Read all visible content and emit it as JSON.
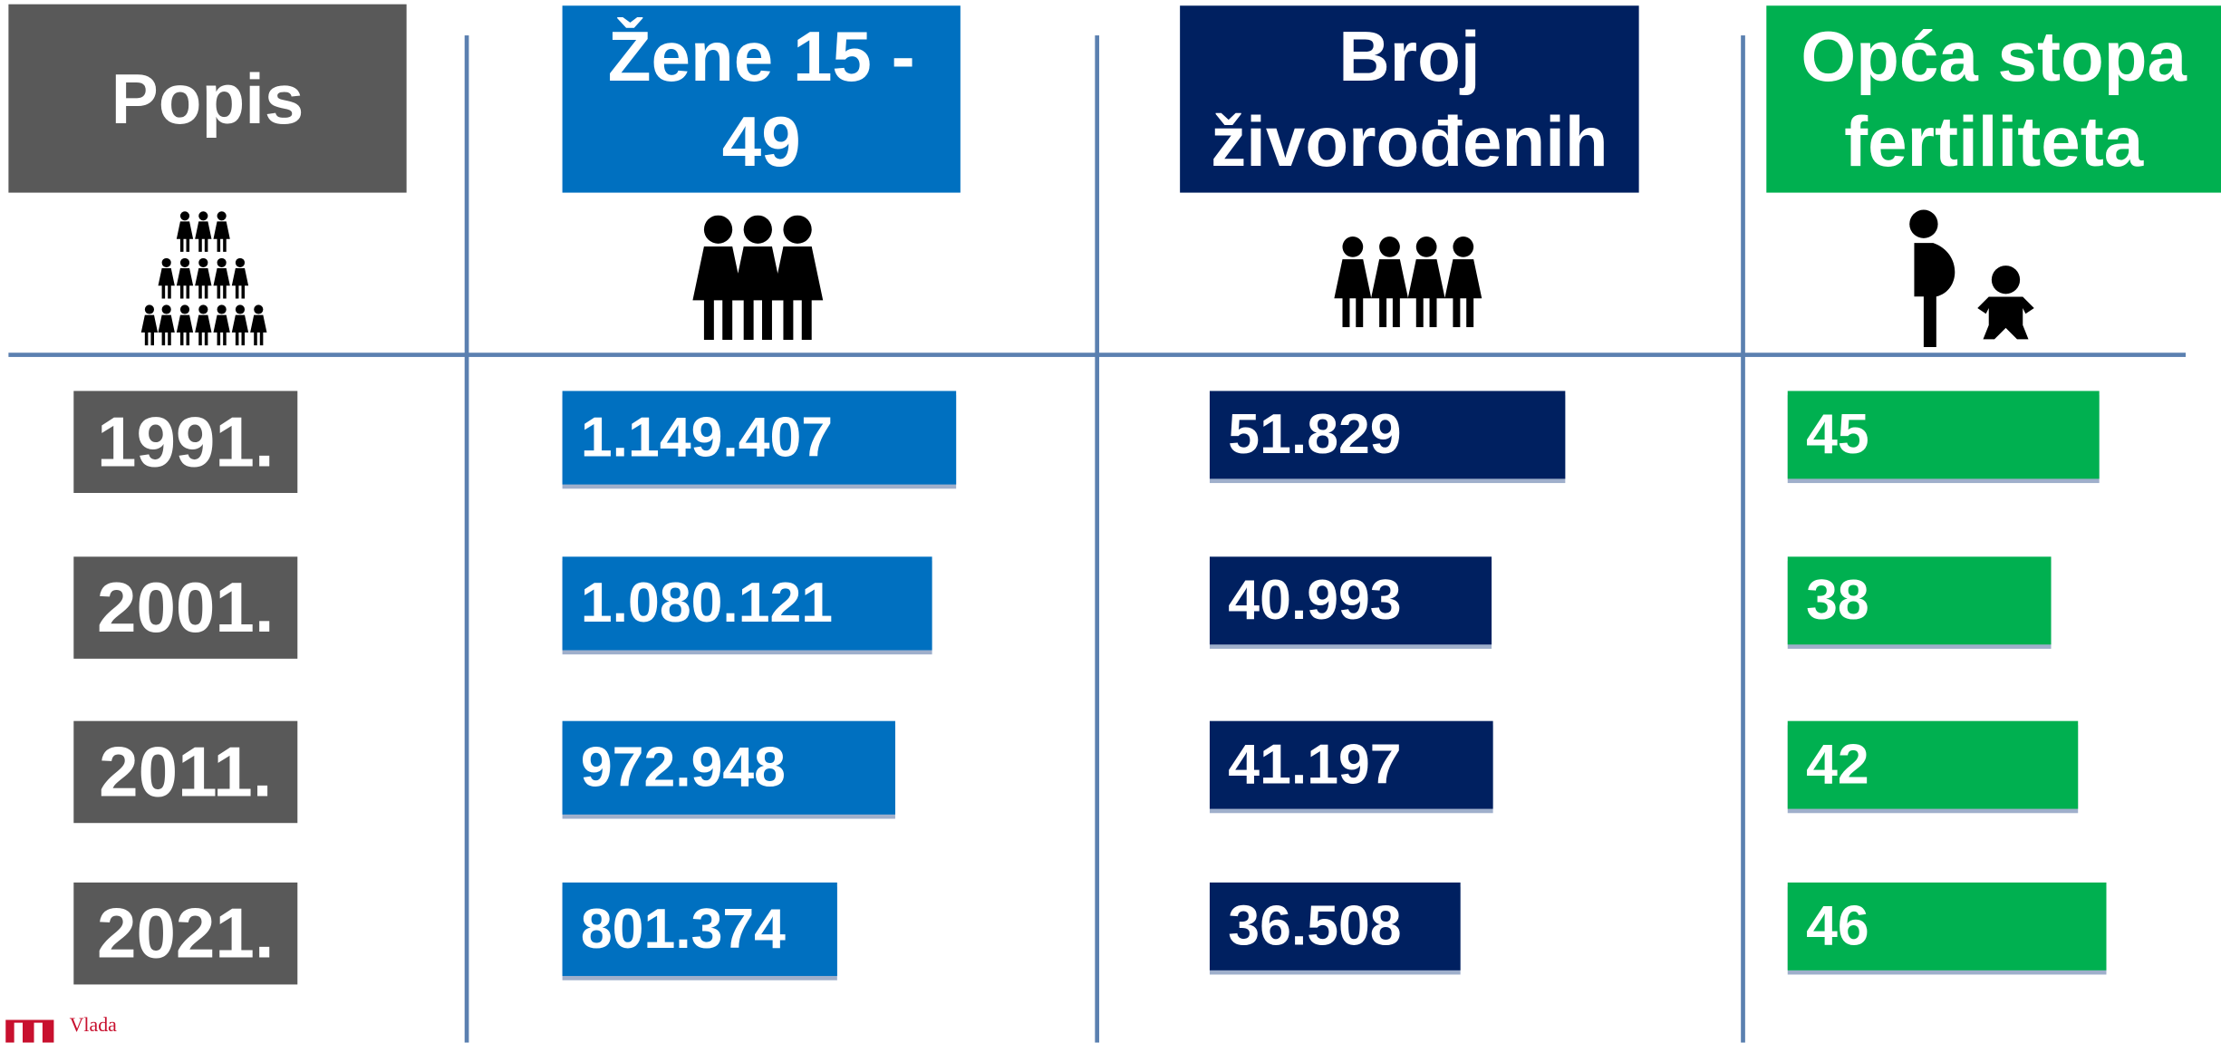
{
  "chart_data": {
    "type": "bar",
    "category_header": "Popis",
    "category_color": "#595959",
    "categories": [
      "1991.",
      "2001.",
      "2011.",
      "2021."
    ],
    "series": [
      {
        "name": "Žene 15 - 49",
        "color": "#0070c0",
        "values": [
          1149407,
          1080121,
          972948,
          801374
        ],
        "value_labels": [
          "1.149.407",
          "1.080.121",
          "972.948",
          "801.374"
        ]
      },
      {
        "name": "Broj živorođenih",
        "color": "#002060",
        "values": [
          51829,
          40993,
          41197,
          36508
        ],
        "value_labels": [
          "51.829",
          "40.993",
          "41.197",
          "36.508"
        ]
      },
      {
        "name": "Opća stopa fertiliteta",
        "color": "#00b050",
        "values": [
          45,
          38,
          42,
          46
        ]
      }
    ]
  },
  "logo_text": "Vlada"
}
